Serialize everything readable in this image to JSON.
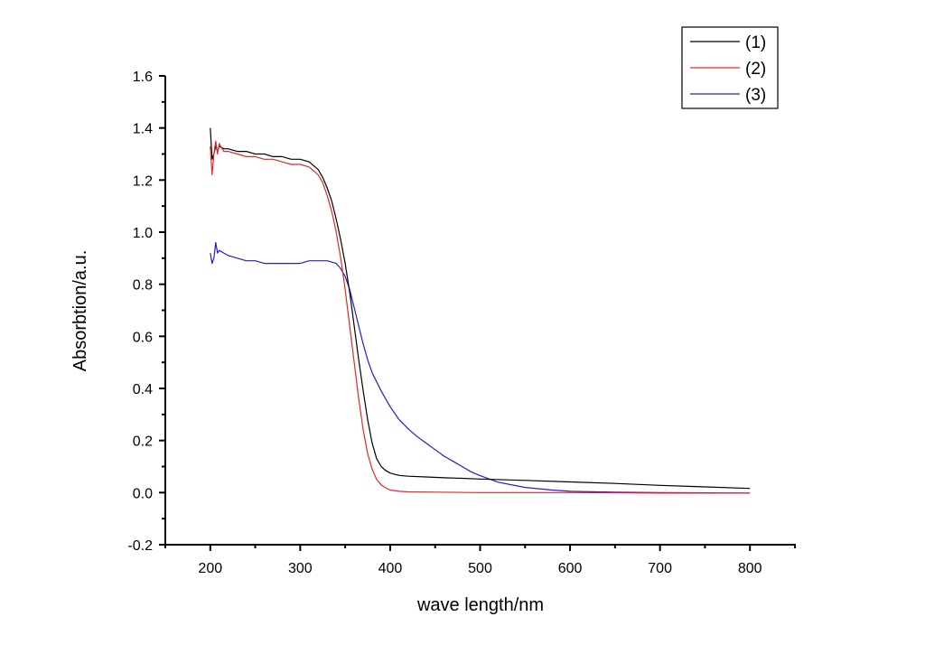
{
  "chart_data": {
    "type": "line",
    "title": "",
    "xlabel": "wave length/nm",
    "ylabel": "Absorbtion/a.u.",
    "xlim": [
      150,
      850
    ],
    "ylim": [
      -0.2,
      1.6
    ],
    "x_ticks": [
      200,
      300,
      400,
      500,
      600,
      700,
      800
    ],
    "x_tick_labels": [
      "200",
      "300",
      "400",
      "500",
      "600",
      "700",
      "800"
    ],
    "x_minor_ticks": [
      150,
      250,
      350,
      450,
      550,
      650,
      750,
      850
    ],
    "y_ticks": [
      -0.2,
      0.0,
      0.2,
      0.4,
      0.6,
      0.8,
      1.0,
      1.2,
      1.4,
      1.6
    ],
    "y_tick_labels": [
      "-0.2",
      "0.0",
      "0.2",
      "0.4",
      "0.6",
      "0.8",
      "1.0",
      "1.2",
      "1.4",
      "1.6"
    ],
    "y_minor_ticks": [
      -0.1,
      0.1,
      0.3,
      0.5,
      0.7,
      0.9,
      1.1,
      1.3,
      1.5
    ],
    "grid": false,
    "legend_position": "top-right",
    "series": [
      {
        "name": "(1)",
        "color": "#000000",
        "x": [
          200,
          202,
          204,
          206,
          208,
          210,
          215,
          220,
          230,
          240,
          250,
          260,
          270,
          280,
          290,
          300,
          310,
          320,
          325,
          330,
          335,
          340,
          345,
          350,
          355,
          360,
          365,
          370,
          375,
          380,
          385,
          390,
          395,
          400,
          405,
          410,
          420,
          440,
          460,
          480,
          500,
          550,
          600,
          650,
          700,
          750,
          800
        ],
        "y": [
          1.4,
          1.28,
          1.3,
          1.33,
          1.31,
          1.33,
          1.32,
          1.32,
          1.31,
          1.31,
          1.3,
          1.3,
          1.29,
          1.29,
          1.28,
          1.28,
          1.27,
          1.24,
          1.21,
          1.17,
          1.12,
          1.05,
          0.97,
          0.88,
          0.77,
          0.64,
          0.51,
          0.39,
          0.28,
          0.19,
          0.13,
          0.1,
          0.085,
          0.075,
          0.07,
          0.066,
          0.063,
          0.06,
          0.057,
          0.055,
          0.052,
          0.047,
          0.041,
          0.035,
          0.028,
          0.022,
          0.016
        ]
      },
      {
        "name": "(2)",
        "color": "#e8262a",
        "x": [
          200,
          202,
          204,
          206,
          208,
          210,
          215,
          220,
          230,
          240,
          250,
          260,
          270,
          280,
          290,
          300,
          310,
          320,
          325,
          330,
          335,
          340,
          345,
          350,
          355,
          360,
          365,
          370,
          375,
          380,
          385,
          390,
          395,
          400,
          410,
          420,
          450,
          500,
          600,
          700,
          800
        ],
        "y": [
          1.33,
          1.22,
          1.3,
          1.35,
          1.3,
          1.34,
          1.31,
          1.31,
          1.3,
          1.29,
          1.29,
          1.28,
          1.28,
          1.27,
          1.26,
          1.26,
          1.25,
          1.22,
          1.19,
          1.14,
          1.08,
          1.0,
          0.9,
          0.78,
          0.64,
          0.5,
          0.36,
          0.24,
          0.15,
          0.09,
          0.05,
          0.03,
          0.018,
          0.01,
          0.005,
          0.003,
          0.002,
          0.0,
          0.0,
          -0.002,
          -0.002
        ]
      },
      {
        "name": "(3)",
        "color": "#1f1fc8",
        "x": [
          200,
          202,
          204,
          206,
          208,
          210,
          215,
          220,
          230,
          240,
          250,
          260,
          270,
          280,
          290,
          300,
          310,
          320,
          330,
          340,
          345,
          350,
          355,
          360,
          365,
          370,
          375,
          380,
          390,
          400,
          410,
          420,
          430,
          440,
          450,
          460,
          470,
          480,
          490,
          500,
          520,
          550,
          580,
          600,
          650,
          700,
          750,
          800
        ],
        "y": [
          0.92,
          0.88,
          0.9,
          0.96,
          0.92,
          0.93,
          0.92,
          0.91,
          0.9,
          0.89,
          0.89,
          0.88,
          0.88,
          0.88,
          0.88,
          0.88,
          0.89,
          0.89,
          0.89,
          0.88,
          0.86,
          0.83,
          0.78,
          0.71,
          0.64,
          0.57,
          0.51,
          0.46,
          0.39,
          0.33,
          0.28,
          0.245,
          0.215,
          0.19,
          0.165,
          0.14,
          0.12,
          0.1,
          0.08,
          0.065,
          0.04,
          0.02,
          0.01,
          0.005,
          0.002,
          0.0,
          -0.001,
          -0.002
        ]
      }
    ]
  }
}
